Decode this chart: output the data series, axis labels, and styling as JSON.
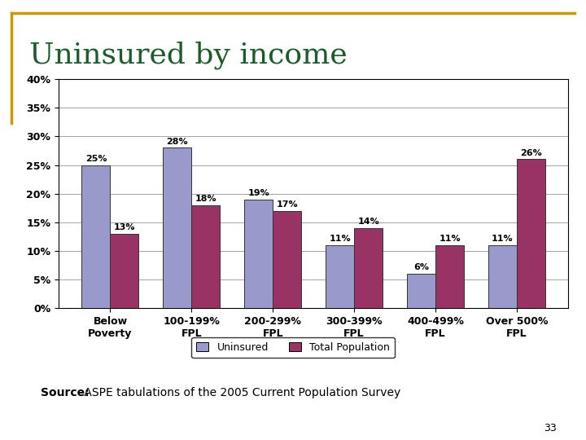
{
  "title": "Uninsured by income",
  "categories": [
    "Below\nPoverty",
    "100-199%\nFPL",
    "200-299%\nFPL",
    "300-399%\nFPL",
    "400-499%\nFPL",
    "Over 500%\nFPL"
  ],
  "uninsured": [
    25,
    28,
    19,
    11,
    6,
    11
  ],
  "total_pop": [
    13,
    18,
    17,
    14,
    11,
    26
  ],
  "uninsured_color": "#9999CC",
  "total_pop_color": "#993366",
  "title_color": "#1a5c2a",
  "border_color": "#CC9900",
  "ylim": [
    0,
    40
  ],
  "yticks": [
    0,
    5,
    10,
    15,
    20,
    25,
    30,
    35,
    40
  ],
  "ytick_labels": [
    "0%",
    "5%",
    "10%",
    "15%",
    "20%",
    "25%",
    "30%",
    "35%",
    "40%"
  ],
  "bar_width": 0.35,
  "legend_labels": [
    "Uninsured",
    "Total Population"
  ],
  "source_bold": "Source:",
  "source_text": " ASPE tabulations of the 2005 Current Population Survey",
  "page_number": "33",
  "background_color": "#FFFFFF",
  "title_fontsize": 26,
  "axis_fontsize": 9,
  "bar_label_fontsize": 8,
  "source_fontsize": 10,
  "legend_fontsize": 9
}
